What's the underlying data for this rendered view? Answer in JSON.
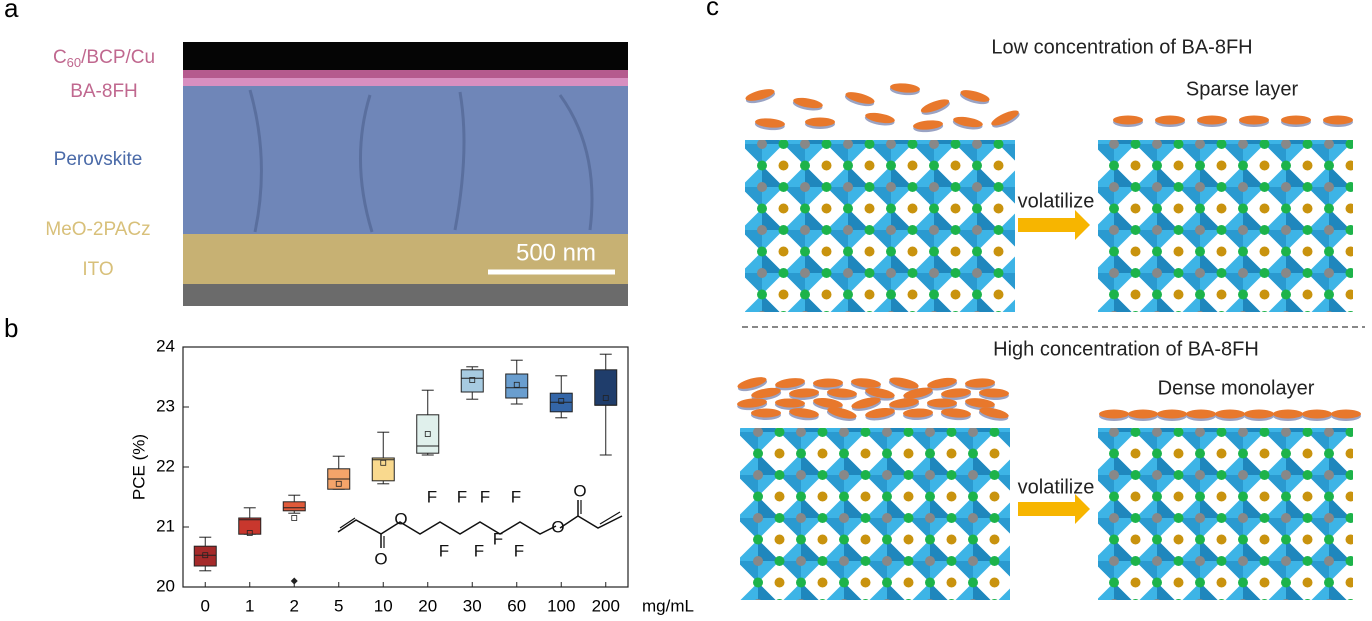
{
  "panel_labels": [
    "a",
    "b",
    "c"
  ],
  "panel_a": {
    "layers": [
      [
        "C",
        "60",
        "/BCP/Cu"
      ],
      "BA-8FH",
      "Perovskite",
      "MeO-2PACz",
      "ITO"
    ],
    "scale_bar": "500 nm"
  },
  "chart_data": {
    "type": "box",
    "ylabel": "PCE (%)",
    "xlabel": "mg/mL",
    "categories": [
      "0",
      "1",
      "2",
      "5",
      "10",
      "20",
      "30",
      "60",
      "100",
      "200"
    ],
    "boxes": [
      {
        "min": 20.27,
        "q1": 20.35,
        "median": 20.53,
        "q3": 20.68,
        "max": 20.83,
        "mean": 20.53,
        "color": "#a52a2a"
      },
      {
        "min": 20.88,
        "q1": 20.88,
        "median": 21.12,
        "q3": 21.15,
        "max": 21.32,
        "mean": 20.9,
        "color": "#c8372d"
      },
      {
        "min": 21.23,
        "q1": 21.27,
        "median": 21.32,
        "q3": 21.42,
        "max": 21.53,
        "mean": 21.15,
        "outliers": [
          20.1
        ],
        "color": "#e05a3a"
      },
      {
        "min": 21.63,
        "q1": 21.63,
        "median": 21.8,
        "q3": 21.97,
        "max": 22.18,
        "mean": 21.72,
        "color": "#f4a46a"
      },
      {
        "min": 21.72,
        "q1": 21.77,
        "median": 22.12,
        "q3": 22.15,
        "max": 22.58,
        "mean": 22.07,
        "color": "#f9d98e"
      },
      {
        "min": 22.2,
        "q1": 22.23,
        "median": 22.35,
        "q3": 22.87,
        "max": 23.28,
        "mean": 22.55,
        "color": "#e0f0ec"
      },
      {
        "min": 23.13,
        "q1": 23.25,
        "median": 23.48,
        "q3": 23.62,
        "max": 23.67,
        "mean": 23.45,
        "color": "#a7cbe1"
      },
      {
        "min": 23.05,
        "q1": 23.15,
        "median": 23.32,
        "q3": 23.55,
        "max": 23.78,
        "mean": 23.37,
        "color": "#6a9ecf"
      },
      {
        "min": 22.82,
        "q1": 22.92,
        "median": 23.08,
        "q3": 23.23,
        "max": 23.52,
        "mean": 23.1,
        "color": "#3466a8"
      },
      {
        "min": 22.2,
        "q1": 23.03,
        "median": 23.03,
        "q3": 23.62,
        "max": 23.88,
        "mean": 23.15,
        "color": "#1f3d6b"
      }
    ],
    "ylim": [
      20,
      24
    ],
    "yticks": [
      20,
      21,
      22,
      23,
      24
    ]
  },
  "molecule": {
    "atoms": [
      "F",
      "F",
      "F",
      "F",
      "F",
      "F",
      "F",
      "F",
      "O",
      "O",
      "O",
      "O"
    ]
  },
  "panel_c": {
    "top_title": "Low concentration of BA-8FH",
    "top_result": "Sparse layer",
    "top_arrow": "volatilize",
    "bottom_title": "High concentration of BA-8FH",
    "bottom_result": "Dense monolayer",
    "bottom_arrow": "volatilize"
  }
}
